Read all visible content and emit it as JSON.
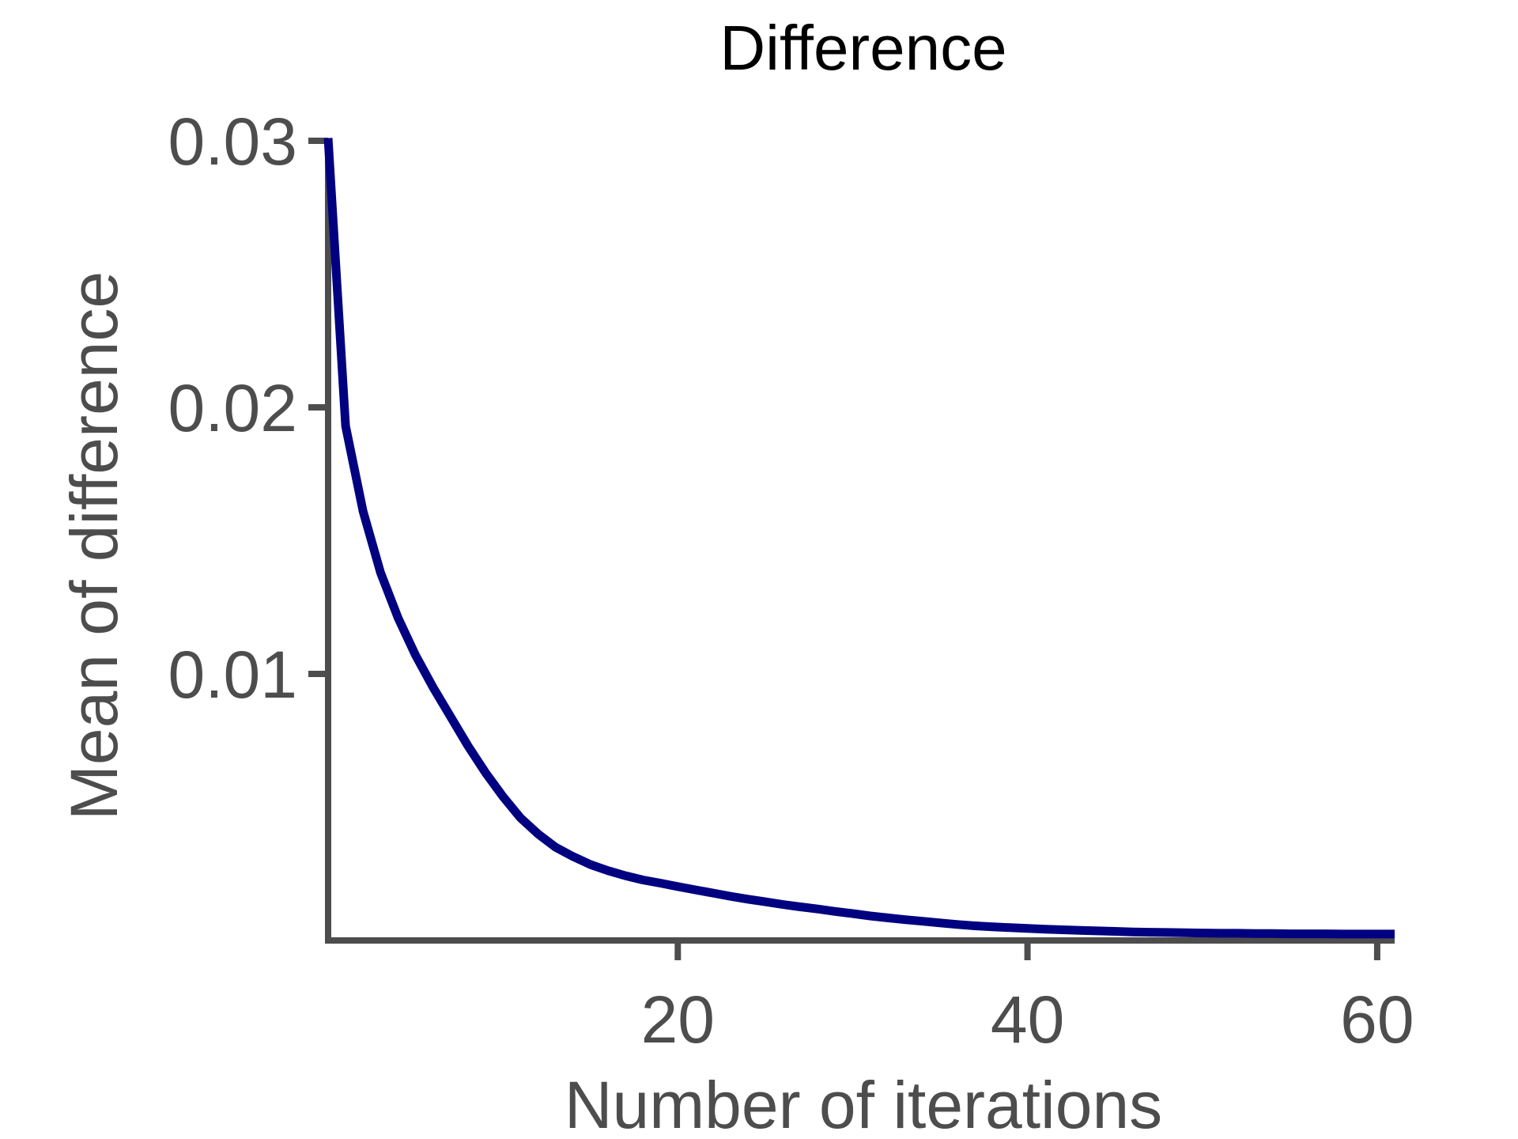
{
  "chart_data": {
    "type": "line",
    "title": "Difference",
    "xlabel": "Number of iterations",
    "ylabel": "Mean of difference",
    "xlim": [
      0,
      61
    ],
    "ylim": [
      0,
      0.03
    ],
    "x_ticks": [
      20,
      40,
      60
    ],
    "x_tick_labels": [
      "20",
      "40",
      "60"
    ],
    "y_ticks": [
      0.01,
      0.02,
      0.03
    ],
    "y_tick_labels": [
      "0.01",
      "0.02",
      "0.03"
    ],
    "grid": false,
    "legend": "none",
    "line_color": "#000080",
    "axis_color": "#4d4d4d",
    "series": [
      {
        "x": [
          0,
          1,
          2,
          3,
          4,
          5,
          6,
          7,
          8,
          9,
          10,
          11,
          12,
          13,
          14,
          15,
          16,
          17,
          18,
          19,
          20,
          21,
          22,
          23,
          24,
          25,
          26,
          27,
          28,
          29,
          30,
          31,
          32,
          33,
          34,
          35,
          36,
          37,
          38,
          39,
          40,
          41,
          42,
          43,
          44,
          45,
          46,
          47,
          48,
          49,
          50,
          51,
          52,
          53,
          54,
          55,
          56,
          57,
          58,
          59,
          60,
          61
        ],
        "y": [
          0.0301,
          0.0193,
          0.0161,
          0.0138,
          0.0121,
          0.0107,
          0.0095,
          0.0084,
          0.0073,
          0.0063,
          0.0054,
          0.0046,
          0.004,
          0.0035,
          0.00315,
          0.00285,
          0.00262,
          0.00243,
          0.00227,
          0.00215,
          0.00202,
          0.0019,
          0.00178,
          0.00166,
          0.00155,
          0.00145,
          0.00135,
          0.00126,
          0.00118,
          0.00109,
          0.00101,
          0.00092,
          0.00085,
          0.00078,
          0.00072,
          0.00066,
          0.0006,
          0.00055,
          0.00051,
          0.00048,
          0.00045,
          0.00042,
          0.0004,
          0.00038,
          0.00036,
          0.00034,
          0.00032,
          0.00031,
          0.0003,
          0.00029,
          0.00028,
          0.00027,
          0.00027,
          0.00026,
          0.00026,
          0.00025,
          0.00025,
          0.00025,
          0.00024,
          0.00024,
          0.00024,
          0.00024
        ]
      }
    ]
  }
}
